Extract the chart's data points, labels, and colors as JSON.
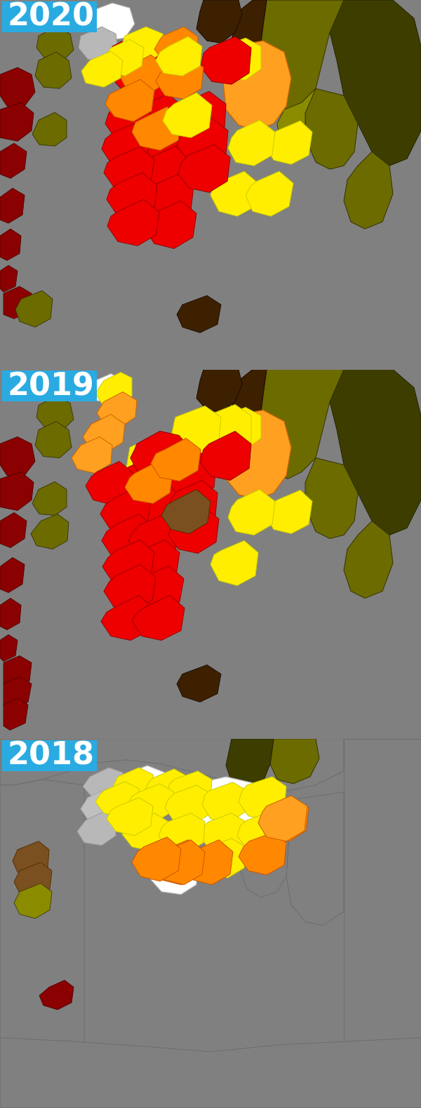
{
  "years": [
    "2020",
    "2019",
    "2018"
  ],
  "label_bg": "#29ABE2",
  "label_fg": "#ffffff",
  "fig_bg": "#808080",
  "panel_bg": "#808080",
  "colors": {
    "dark_olive": "#3d3d00",
    "olive": "#6b6b2f",
    "olive2": "#6b6b00",
    "olive3": "#8b8b00",
    "dark_brown": "#3d2000",
    "brown": "#5c3810",
    "brown2": "#7a5020",
    "gray_bg": "#808080",
    "gray_light": "#c0c0c0",
    "gray_med": "#a0a0a0",
    "gray_dark": "#686868",
    "dark_red": "#8b0000",
    "red": "#cc0000",
    "bright_red": "#ee0000",
    "orange": "#ff8800",
    "orange2": "#ffa020",
    "yellow": "#ffee00",
    "white": "#ffffff",
    "gray_region": "#b8b8b8"
  }
}
